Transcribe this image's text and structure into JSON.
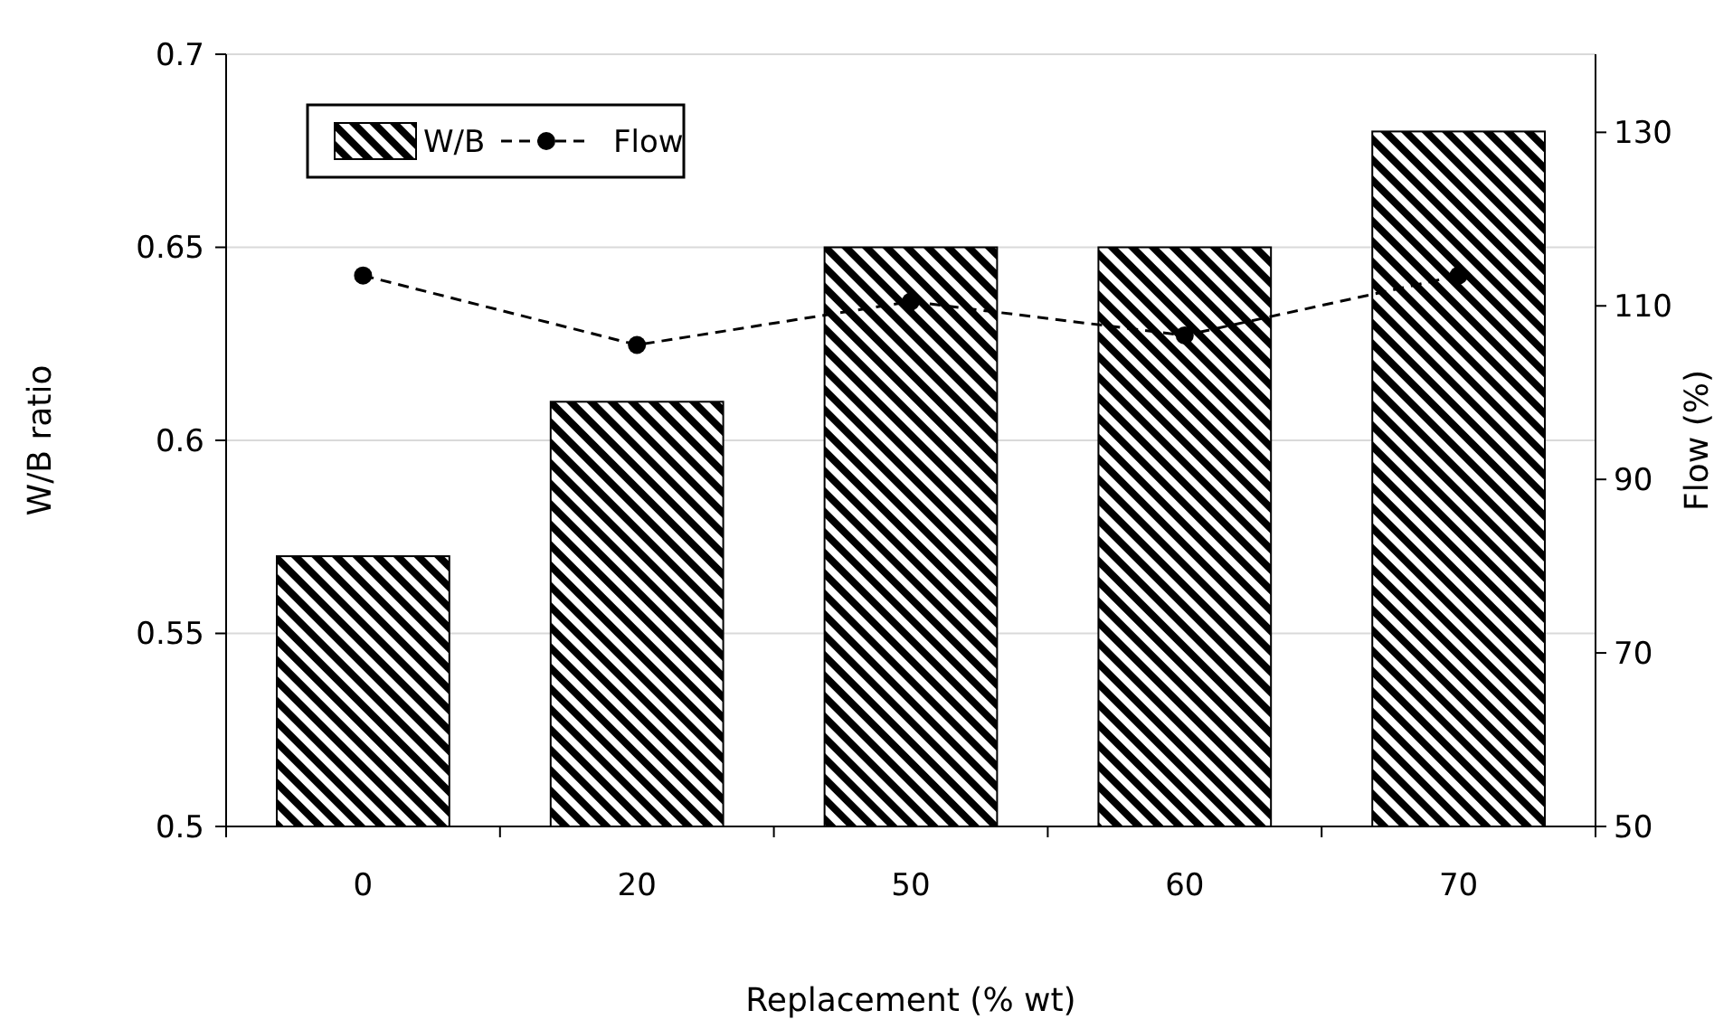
{
  "chart_data": {
    "type": "bar",
    "xlabel": "Replacement (% wt)",
    "ylabel": "W/B ratio",
    "y2label": "Flow (%)",
    "categories": [
      "0",
      "20",
      "50",
      "60",
      "70"
    ],
    "series": [
      {
        "name": "W/B",
        "color": "#000000",
        "values": [
          0.57,
          0.61,
          0.65,
          0.65,
          0.68
        ]
      },
      {
        "name": "Flow",
        "type": "line",
        "axis": "y2",
        "color": "#000000",
        "values": [
          113.5,
          105.5,
          110.5,
          106.6,
          113.5
        ],
        "marker": "circle",
        "line_style": "dashed"
      }
    ],
    "ylim": [
      0.5,
      0.7
    ],
    "yticks": [
      0.5,
      0.55,
      0.6,
      0.65,
      0.7
    ],
    "y2lim": [
      50,
      139
    ],
    "y2ticks": [
      50,
      70,
      90,
      110,
      130
    ],
    "grid": "y",
    "legend": "top left"
  }
}
